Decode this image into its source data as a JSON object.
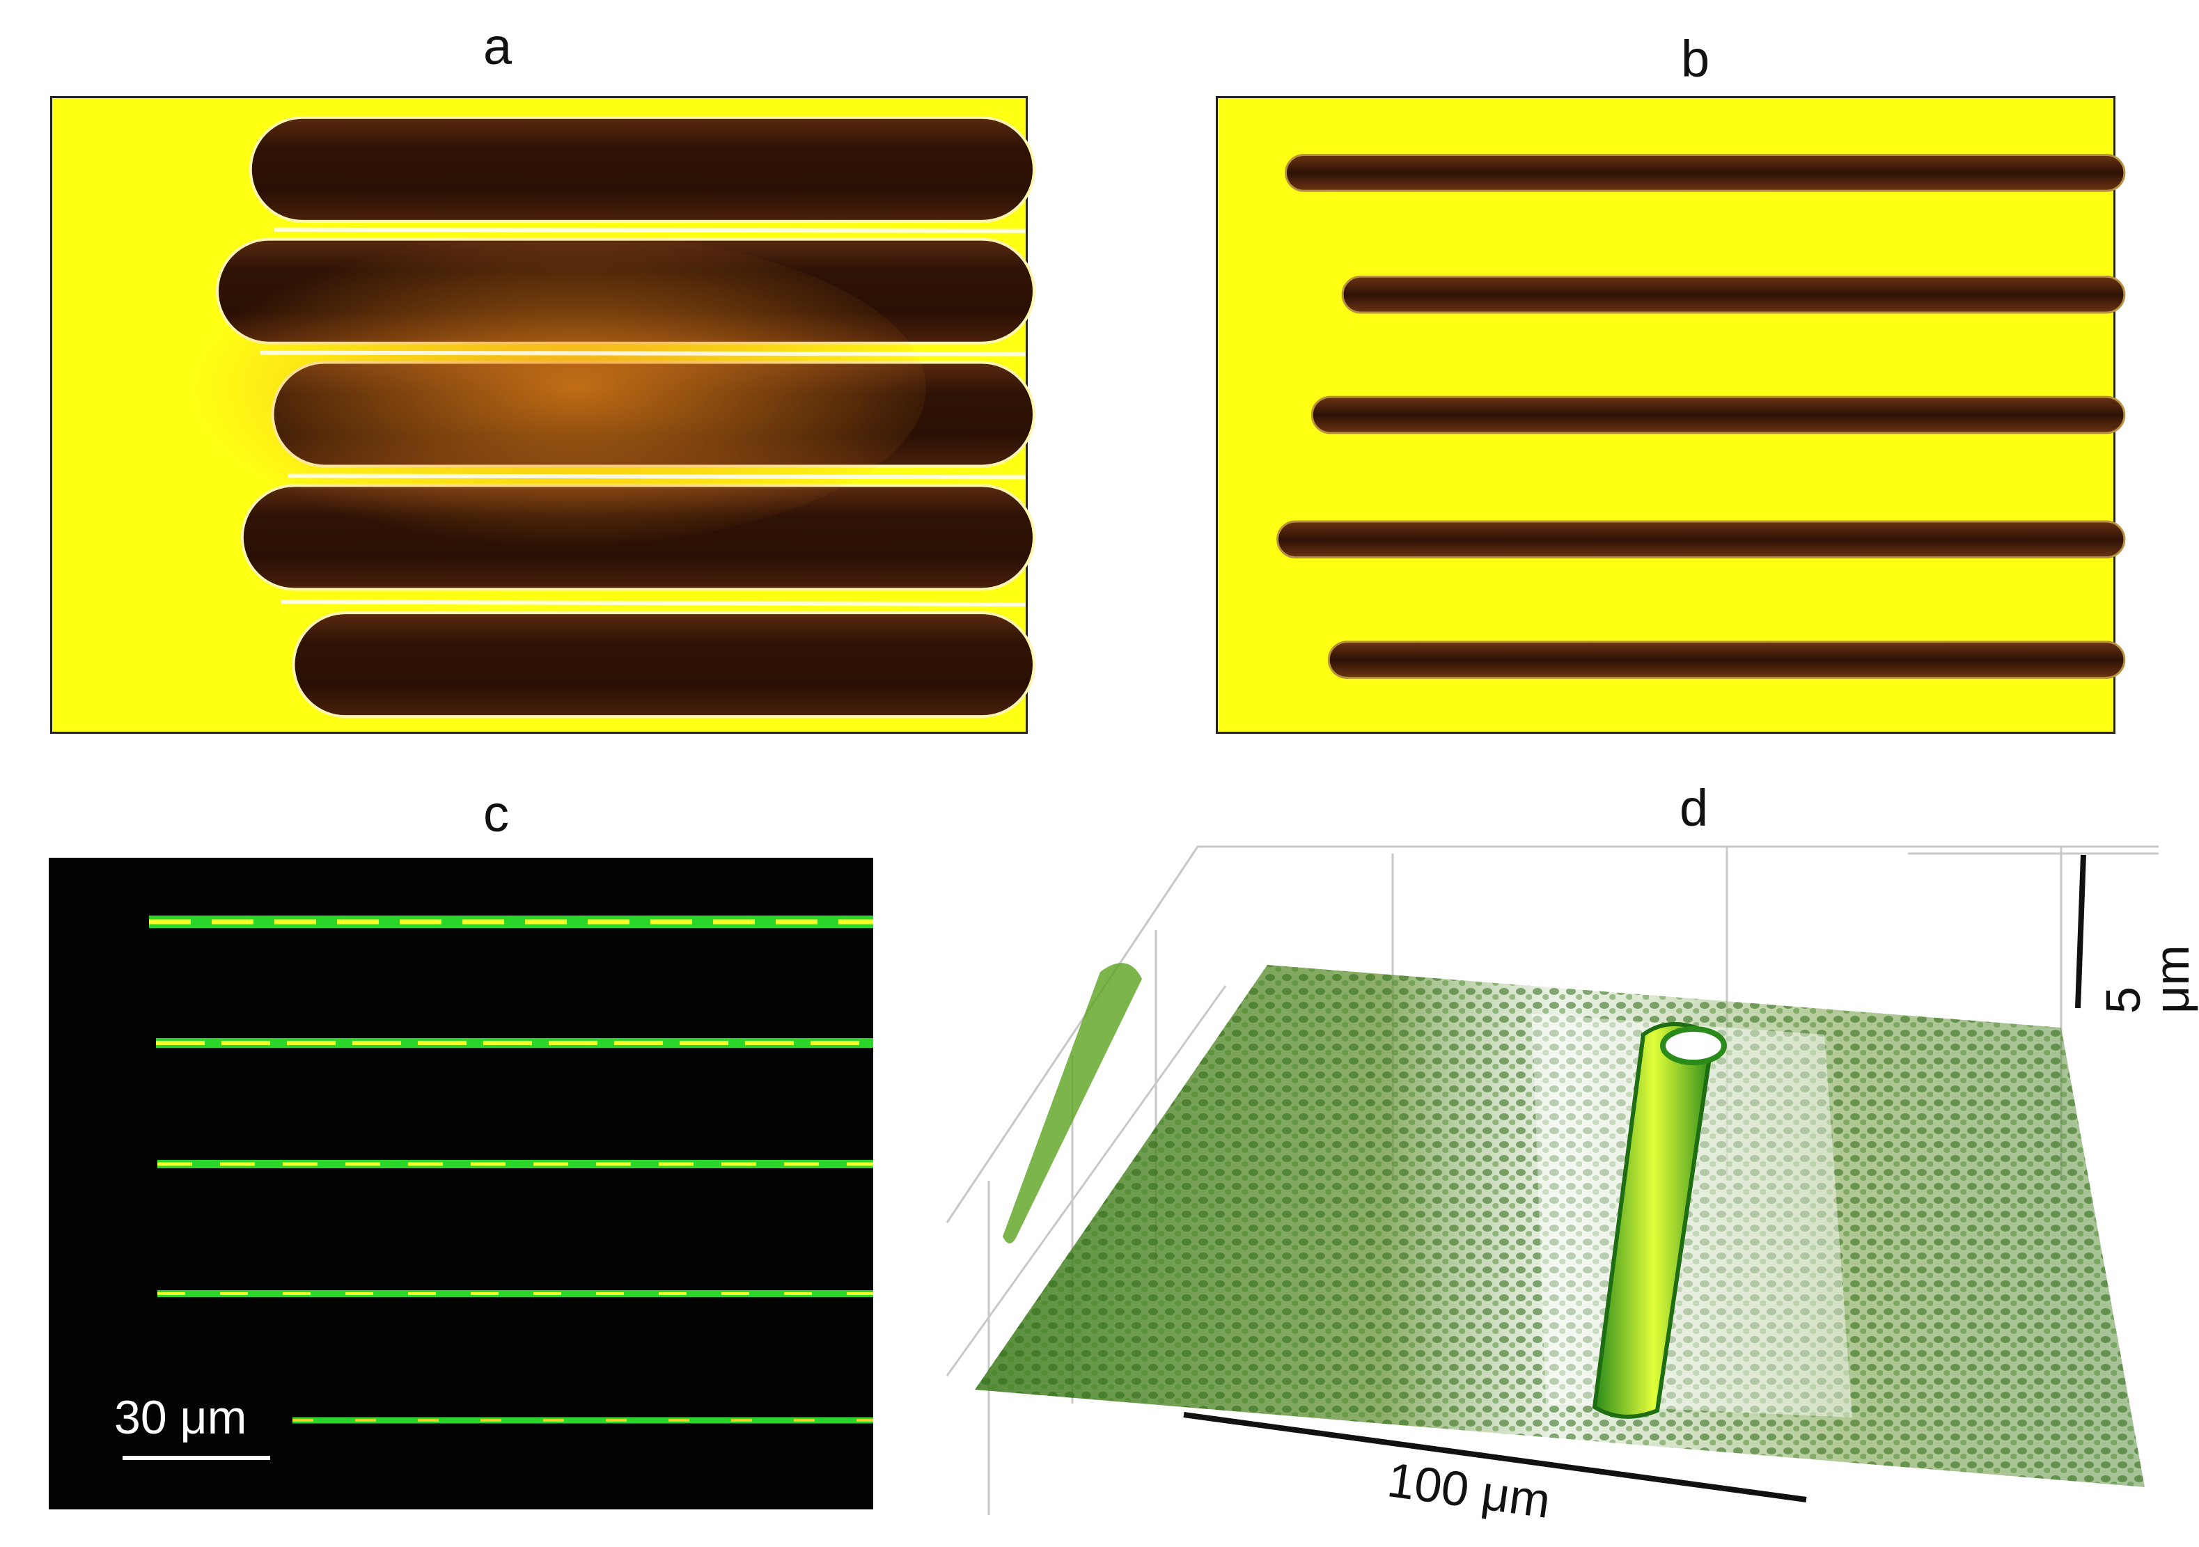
{
  "panels": {
    "a": {
      "label": "a"
    },
    "b": {
      "label": "b"
    },
    "c": {
      "label": "c",
      "scalebar": "30 μm"
    },
    "d": {
      "label": "d",
      "scalebar_horizontal": "100 μm",
      "scalebar_vertical": "5 μm"
    }
  },
  "colors": {
    "substrate_yellow": "#ffff14",
    "channel_dark": "#3a1606",
    "fluor_green": "#2bd62b",
    "fluor_yellow": "#f4ff2a",
    "black_bg": "#030303",
    "surface_green": "#3a7a1a"
  }
}
